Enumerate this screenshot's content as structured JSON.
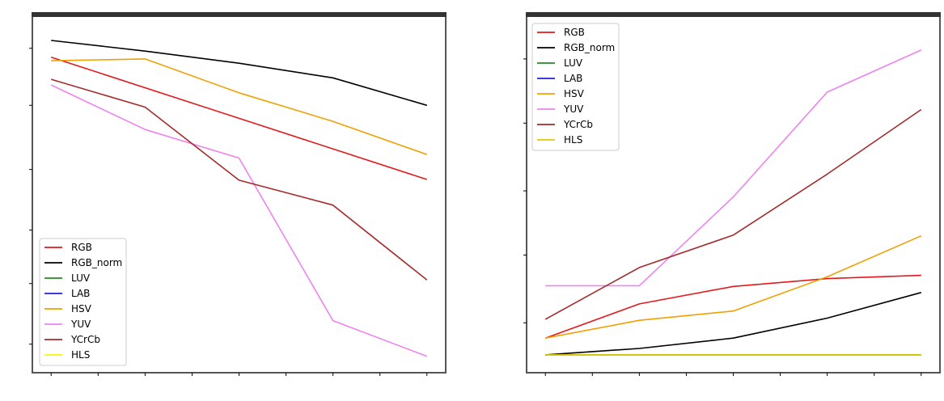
{
  "chart_data": [
    {
      "type": "line",
      "title": "",
      "xlabel": "",
      "ylabel": "",
      "x": [
        1,
        2,
        3,
        4,
        5,
        6,
        7,
        8,
        9
      ],
      "xlim": [
        0.6,
        9.4
      ],
      "ylim": [
        0,
        100
      ],
      "legend_position": "lower-left",
      "grid": false,
      "series": [
        {
          "name": "RGB",
          "color": "#e31a1c",
          "points": [
            [
              1,
              88.5
            ],
            [
              9,
              54.2
            ]
          ]
        },
        {
          "name": "RGB_norm",
          "color": "#000000",
          "points": [
            [
              1,
              93.2
            ],
            [
              3,
              90.2
            ],
            [
              5,
              86.8
            ],
            [
              7,
              82.7
            ],
            [
              9,
              75.0
            ]
          ]
        },
        {
          "name": "LUV",
          "color": "#228b22",
          "points": []
        },
        {
          "name": "LAB",
          "color": "#1f1fd6",
          "points": []
        },
        {
          "name": "HSV",
          "color": "#f0a000",
          "points": [
            [
              1,
              87.5
            ],
            [
              3,
              88.0
            ],
            [
              5,
              78.5
            ],
            [
              7,
              70.5
            ],
            [
              9,
              61.2
            ]
          ]
        },
        {
          "name": "YUV",
          "color": "#ee82ee",
          "points": [
            [
              1,
              80.7
            ],
            [
              3,
              68.2
            ],
            [
              5,
              60.2
            ],
            [
              7,
              14.6
            ],
            [
              9,
              4.6
            ]
          ]
        },
        {
          "name": "YCrCb",
          "color": "#a52a2a",
          "points": [
            [
              1,
              82.3
            ],
            [
              3,
              74.5
            ],
            [
              5,
              54.0
            ],
            [
              7,
              47.0
            ],
            [
              9,
              26.0
            ]
          ]
        },
        {
          "name": "HLS",
          "color": "#f5f500",
          "points": []
        }
      ]
    },
    {
      "type": "line",
      "title": "",
      "xlabel": "",
      "ylabel": "",
      "x": [
        1,
        2,
        3,
        4,
        5,
        6,
        7,
        8,
        9
      ],
      "xlim": [
        0.6,
        9.4
      ],
      "ylim": [
        0,
        100
      ],
      "legend_position": "upper-left",
      "grid": false,
      "series": [
        {
          "name": "RGB",
          "color": "#e31a1c",
          "points": [
            [
              1,
              9.7
            ],
            [
              3,
              19.3
            ],
            [
              5,
              24.2
            ],
            [
              7,
              26.4
            ],
            [
              9,
              27.3
            ]
          ]
        },
        {
          "name": "RGB_norm",
          "color": "#000000",
          "points": [
            [
              1,
              5.0
            ],
            [
              3,
              6.8
            ],
            [
              5,
              9.7
            ],
            [
              7,
              15.3
            ],
            [
              9,
              22.5
            ]
          ]
        },
        {
          "name": "LUV",
          "color": "#228b22",
          "points": [
            [
              1,
              5.0
            ],
            [
              9,
              5.0
            ]
          ]
        },
        {
          "name": "LAB",
          "color": "#1f1fd6",
          "points": []
        },
        {
          "name": "HSV",
          "color": "#f0a000",
          "points": [
            [
              1,
              9.7
            ],
            [
              3,
              14.7
            ],
            [
              5,
              17.3
            ],
            [
              7,
              26.9
            ],
            [
              9,
              38.4
            ]
          ]
        },
        {
          "name": "YUV",
          "color": "#ee82ee",
          "points": [
            [
              1,
              24.4
            ],
            [
              3,
              24.4
            ],
            [
              5,
              49.3
            ],
            [
              7,
              78.7
            ],
            [
              9,
              90.5
            ]
          ]
        },
        {
          "name": "YCrCb",
          "color": "#a52a2a",
          "points": [
            [
              1,
              15.0
            ],
            [
              3,
              29.5
            ],
            [
              5,
              38.6
            ],
            [
              7,
              55.7
            ],
            [
              9,
              73.8
            ]
          ]
        },
        {
          "name": "HLS",
          "color": "#e6c800",
          "points": [
            [
              1,
              5.0
            ],
            [
              9,
              5.0
            ]
          ]
        }
      ]
    }
  ]
}
